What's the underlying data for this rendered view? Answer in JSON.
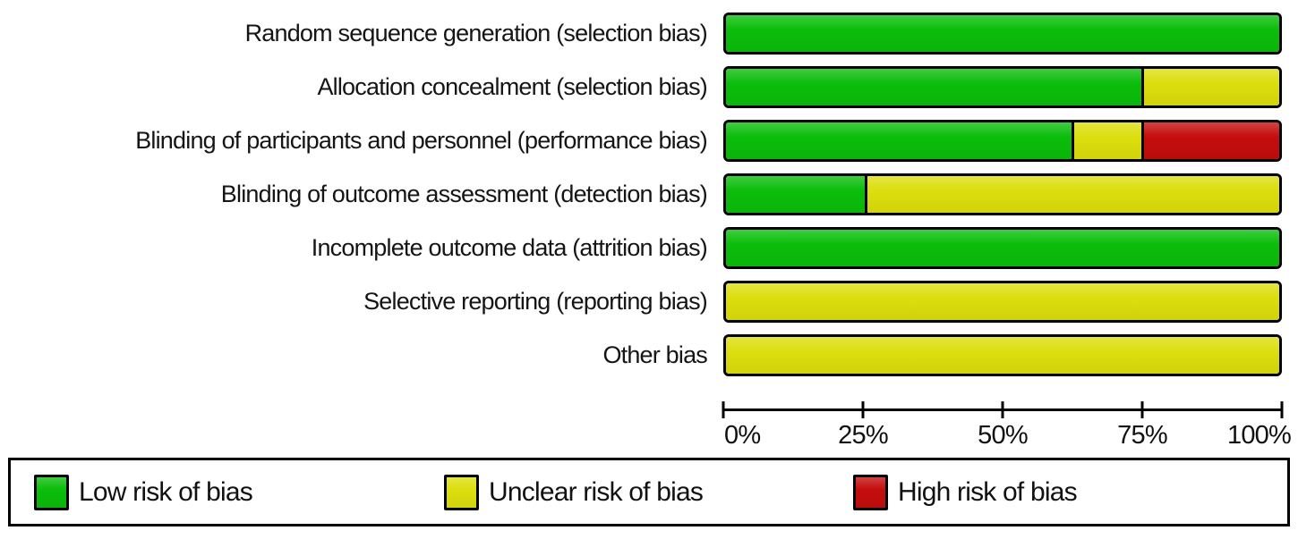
{
  "chart_data": {
    "type": "bar",
    "variant": "horizontal-stacked-percentage",
    "title": "",
    "categories": [
      "Random sequence generation (selection bias)",
      "Allocation concealment (selection bias)",
      "Blinding of participants and personnel (performance bias)",
      "Blinding of outcome assessment (detection bias)",
      "Incomplete outcome data (attrition bias)",
      "Selective reporting (reporting bias)",
      "Other bias"
    ],
    "series": [
      {
        "key": "low",
        "name": "Low risk of bias",
        "color": "#0bbd0b",
        "values": [
          100,
          75,
          62.5,
          25,
          100,
          0,
          0
        ]
      },
      {
        "key": "unclear",
        "name": "Unclear risk of bias",
        "color": "#dcde0d",
        "values": [
          0,
          25,
          12.5,
          75,
          0,
          100,
          100
        ]
      },
      {
        "key": "high",
        "name": "High risk of bias",
        "color": "#c40d0d",
        "values": [
          0,
          0,
          25,
          0,
          0,
          0,
          0
        ]
      }
    ],
    "x_axis": {
      "range": [
        0,
        100
      ],
      "tick_labels": [
        "0%",
        "25%",
        "50%",
        "75%",
        "100%"
      ],
      "unit": "%"
    },
    "legend": {
      "position": "bottom",
      "entries": [
        "Low risk of bias",
        "Unclear risk of bias",
        "High risk of bias"
      ]
    },
    "grid": false,
    "outline_color": "#000000",
    "background_color": "#ffffff"
  }
}
